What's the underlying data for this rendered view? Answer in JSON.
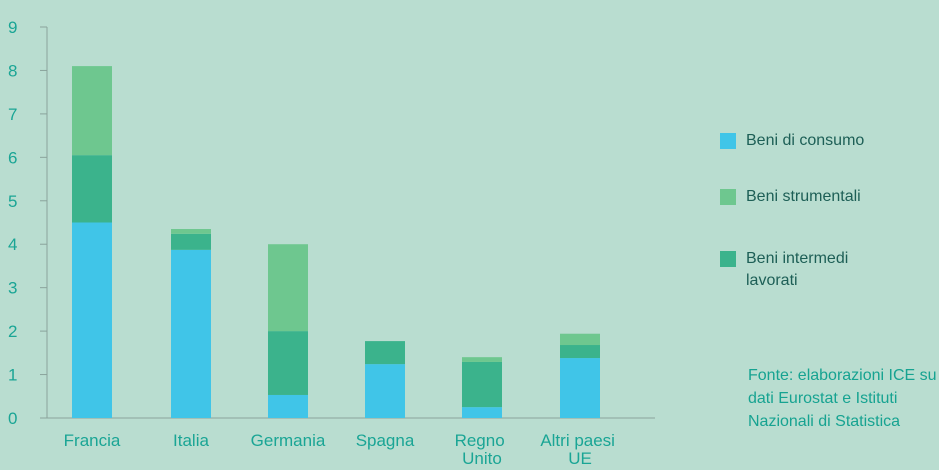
{
  "chart_data": {
    "type": "bar",
    "stacked": true,
    "categories": [
      "Francia",
      "Italia",
      "Germania",
      "Spagna",
      "Regno Unito",
      "Altri paesi UE"
    ],
    "series": [
      {
        "name": "Beni di consumo",
        "color": "#40c5e8",
        "values": [
          4.5,
          3.87,
          0.53,
          1.24,
          0.25,
          1.38
        ]
      },
      {
        "name": "Beni intermedi lavorati",
        "color": "#3bb38c",
        "values": [
          1.55,
          0.37,
          1.47,
          0.53,
          1.04,
          0.3
        ]
      },
      {
        "name": "Beni strumentali",
        "color": "#6ec78f",
        "values": [
          2.05,
          0.11,
          2.0,
          0,
          0.11,
          0.26
        ]
      }
    ],
    "legend_order": [
      0,
      2,
      1
    ],
    "ylim": [
      0,
      9
    ],
    "yticks": [
      0,
      1,
      2,
      3,
      4,
      5,
      6,
      7,
      8,
      9
    ],
    "source": "Fonte: elaborazioni ICE su dati Eurostat e Istituti Nazionali di Statistica"
  }
}
